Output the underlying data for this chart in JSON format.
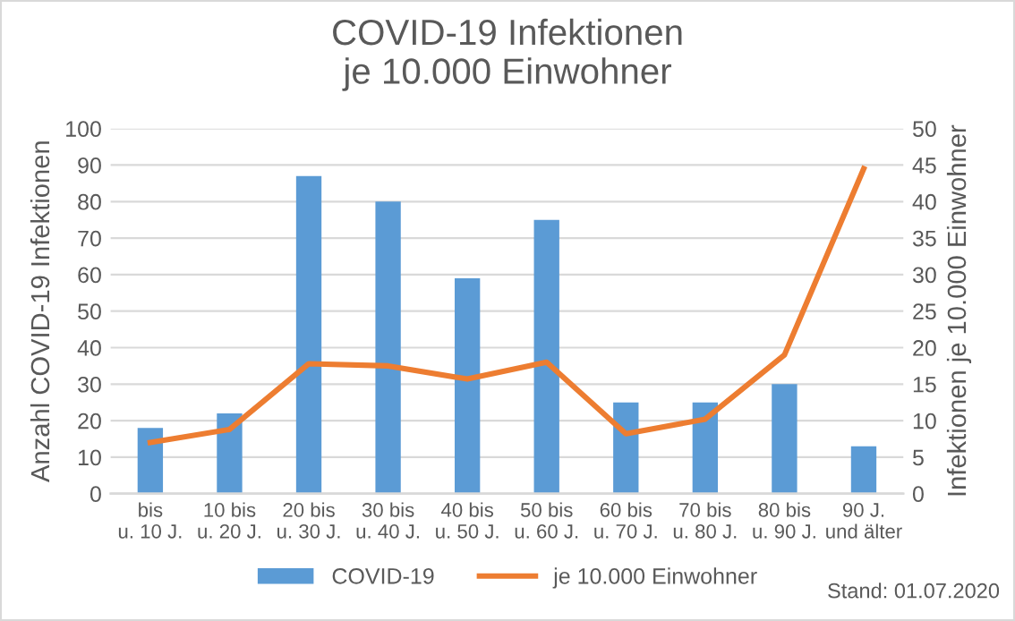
{
  "chart_data": {
    "type": "bar",
    "title": "COVID-19 Infektionen\nje 10.000 Einwohner",
    "categories": [
      "bis\nu. 10 J.",
      "10 bis\nu. 20 J.",
      "20 bis\nu. 30 J.",
      "30 bis\nu. 40 J.",
      "40 bis\nu. 50 J.",
      "50 bis\nu. 60 J.",
      "60 bis\nu. 70 J.",
      "70 bis\nu. 80 J.",
      "80 bis\nu. 90 J.",
      "90 J.\nund älter"
    ],
    "series": [
      {
        "name": "COVID-19",
        "color": "#5b9bd5",
        "values": [
          18,
          22,
          87,
          80,
          59,
          75,
          25,
          25,
          30,
          13
        ]
      },
      {
        "name": "je 10.000 Einwohner",
        "type": "line",
        "axis": "y2",
        "color": "#ed7d31",
        "values": [
          7,
          8.8,
          17.8,
          17.5,
          15.7,
          18,
          8.2,
          10.2,
          19,
          44.5
        ]
      }
    ],
    "ylabel": "Anzahl COVID-19 Infektionen",
    "y2label": "Infektionen je 10.000 Einwohner",
    "ylim": [
      0,
      100
    ],
    "yticks": [
      0,
      10,
      20,
      30,
      40,
      50,
      60,
      70,
      80,
      90,
      100
    ],
    "y2lim": [
      0,
      50
    ],
    "y2ticks": [
      0,
      5,
      10,
      15,
      20,
      25,
      30,
      35,
      40,
      45,
      50
    ],
    "grid": "y",
    "legend": "bottom",
    "marker": "none",
    "line_style": "solid",
    "annotations": [
      "Stand: 01.07.2020"
    ]
  }
}
